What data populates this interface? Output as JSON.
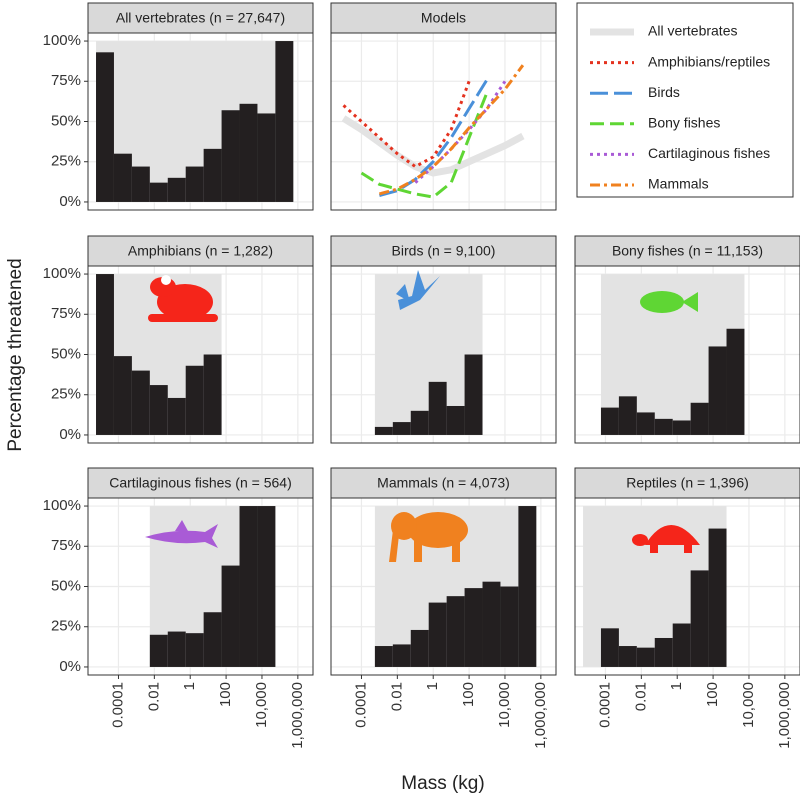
{
  "axis_titles": {
    "x": "Mass (kg)",
    "y": "Percentage threatened"
  },
  "chart_data": [
    {
      "type": "histogram",
      "title": "All vertebrates (n = 27,647)",
      "xscale": "log",
      "color": "#231f20",
      "bins": [
        5.6e-06,
        5.6e-05,
        0.00056,
        0.0056,
        0.056,
        0.56,
        5.6,
        56,
        560,
        5600,
        56000,
        560000
      ],
      "values": [
        93,
        30,
        22,
        12,
        15,
        22,
        33,
        57,
        61,
        55,
        100
      ],
      "xlim": [
        2e-06,
        7000000
      ],
      "ylim": [
        -5,
        105
      ],
      "xticks": [
        0.0001,
        0.01,
        1,
        100,
        {
          "value": 10000,
          "label": "10,000"
        },
        {
          "value": 1000000,
          "label": "1,000,000"
        }
      ],
      "yticks": [
        {
          "value": 0,
          "label": "0%"
        },
        {
          "value": 25,
          "label": "25%"
        },
        {
          "value": 50,
          "label": "50%"
        },
        {
          "value": 75,
          "label": "75%"
        },
        {
          "value": 100,
          "label": "100%"
        }
      ]
    },
    {
      "type": "line",
      "title": "Models",
      "xscale": "log",
      "legend": "outside-right",
      "x": [
        1e-05,
        0.0001,
        0.001,
        0.01,
        0.1,
        1,
        10,
        100,
        1000,
        10000,
        100000,
        1000000
      ],
      "series": [
        {
          "name": "All vertebrates",
          "color": "#e3e3e3",
          "linestyle": "solid",
          "values": [
            52,
            45,
            37,
            29,
            22,
            18,
            20,
            25,
            30,
            35,
            41,
            null
          ]
        },
        {
          "name": "Amphibians/reptiles",
          "color": "#e4321f",
          "linestyle": "dotted",
          "values": [
            60,
            50,
            40,
            30,
            22,
            28,
            45,
            75,
            null,
            null,
            null,
            null
          ]
        },
        {
          "name": "Birds",
          "color": "#4a90d9",
          "linestyle": "longdash",
          "values": [
            null,
            null,
            4,
            7,
            14,
            25,
            40,
            58,
            76,
            null,
            null,
            null
          ]
        },
        {
          "name": "Bony fishes",
          "color": "#5fd634",
          "linestyle": "dashed",
          "values": [
            null,
            18,
            11,
            8,
            5,
            3,
            12,
            40,
            68,
            null,
            null,
            null
          ]
        },
        {
          "name": "Cartilaginous fishes",
          "color": "#a95bd6",
          "linestyle": "dotted",
          "values": [
            null,
            null,
            null,
            null,
            12,
            22,
            33,
            45,
            58,
            75,
            null,
            null
          ]
        },
        {
          "name": "Mammals",
          "color": "#f0811f",
          "linestyle": "dotdash",
          "values": [
            null,
            null,
            5,
            8,
            14,
            22,
            33,
            46,
            58,
            70,
            85,
            null
          ]
        }
      ],
      "xlim": [
        2e-06,
        7000000
      ],
      "ylim": [
        -5,
        105
      ],
      "xticks": [
        0.0001,
        0.01,
        1,
        100,
        {
          "value": 10000,
          "label": "10,000"
        },
        {
          "value": 1000000,
          "label": "1,000,000"
        }
      ],
      "yticks": [
        {
          "value": 0,
          "label": "0%"
        },
        {
          "value": 25,
          "label": "25%"
        },
        {
          "value": 50,
          "label": "50%"
        },
        {
          "value": 75,
          "label": "75%"
        },
        {
          "value": 100,
          "label": "100%"
        }
      ]
    },
    {
      "type": "histogram",
      "title": "Amphibians (n = 1,282)",
      "xscale": "log",
      "color": "#231f20",
      "bins": [
        5.6e-06,
        5.6e-05,
        0.00056,
        0.0056,
        0.056,
        0.56,
        5.6,
        56
      ],
      "values": [
        100,
        49,
        40,
        31,
        23,
        43,
        50
      ],
      "xlim": [
        2e-06,
        7000000
      ],
      "ylim": [
        -5,
        105
      ],
      "xticks": [
        0.0001,
        0.01,
        1,
        100,
        {
          "value": 10000,
          "label": "10,000"
        },
        {
          "value": 1000000,
          "label": "1,000,000"
        }
      ],
      "yticks": [
        {
          "value": 0,
          "label": "0%"
        },
        {
          "value": 25,
          "label": "25%"
        },
        {
          "value": 50,
          "label": "50%"
        },
        {
          "value": 75,
          "label": "75%"
        },
        {
          "value": 100,
          "label": "100%"
        }
      ]
    },
    {
      "type": "histogram",
      "title": "Birds (n = 9,100)",
      "xscale": "log",
      "color": "#231f20",
      "bins": [
        0.00056,
        0.0056,
        0.056,
        0.56,
        5.6,
        56,
        560
      ],
      "values": [
        5,
        8,
        15,
        33,
        18,
        50
      ],
      "xlim": [
        2e-06,
        7000000
      ],
      "ylim": [
        -5,
        105
      ],
      "xticks": [
        0.0001,
        0.01,
        1,
        100,
        {
          "value": 10000,
          "label": "10,000"
        },
        {
          "value": 1000000,
          "label": "1,000,000"
        }
      ],
      "yticks": [
        {
          "value": 0,
          "label": "0%"
        },
        {
          "value": 25,
          "label": "25%"
        },
        {
          "value": 50,
          "label": "50%"
        },
        {
          "value": 75,
          "label": "75%"
        },
        {
          "value": 100,
          "label": "100%"
        }
      ]
    },
    {
      "type": "histogram",
      "title": "Bony fishes (n = 11,153)",
      "xscale": "log",
      "color": "#231f20",
      "bins": [
        5.6e-05,
        0.00056,
        0.0056,
        0.056,
        0.56,
        5.6,
        56,
        560,
        5600
      ],
      "values": [
        17,
        24,
        14,
        10,
        9,
        20,
        55,
        66
      ],
      "xlim": [
        2e-06,
        7000000
      ],
      "ylim": [
        -5,
        105
      ],
      "xticks": [
        0.0001,
        0.01,
        1,
        100,
        {
          "value": 10000,
          "label": "10,000"
        },
        {
          "value": 1000000,
          "label": "1,000,000"
        }
      ],
      "yticks": [
        {
          "value": 0,
          "label": "0%"
        },
        {
          "value": 25,
          "label": "25%"
        },
        {
          "value": 50,
          "label": "50%"
        },
        {
          "value": 75,
          "label": "75%"
        },
        {
          "value": 100,
          "label": "100%"
        }
      ]
    },
    {
      "type": "histogram",
      "title": "Cartilaginous fishes (n = 564)",
      "xscale": "log",
      "color": "#231f20",
      "bins": [
        0.0056,
        0.056,
        0.56,
        5.6,
        56,
        560,
        5600,
        56000
      ],
      "values": [
        20,
        22,
        21,
        34,
        63,
        100,
        100
      ],
      "xlim": [
        2e-06,
        7000000
      ],
      "ylim": [
        -5,
        105
      ],
      "xticks": [
        0.0001,
        0.01,
        1,
        100,
        {
          "value": 10000,
          "label": "10,000"
        },
        {
          "value": 1000000,
          "label": "1,000,000"
        }
      ],
      "yticks": [
        {
          "value": 0,
          "label": "0%"
        },
        {
          "value": 25,
          "label": "25%"
        },
        {
          "value": 50,
          "label": "50%"
        },
        {
          "value": 75,
          "label": "75%"
        },
        {
          "value": 100,
          "label": "100%"
        }
      ]
    },
    {
      "type": "histogram",
      "title": "Mammals (n = 4,073)",
      "xscale": "log",
      "color": "#231f20",
      "bins": [
        0.00056,
        0.0056,
        0.056,
        0.56,
        5.6,
        56,
        560,
        5600,
        56000,
        560000
      ],
      "values": [
        13,
        14,
        23,
        40,
        44,
        49,
        53,
        50,
        100
      ],
      "xlim": [
        2e-06,
        7000000
      ],
      "ylim": [
        -5,
        105
      ],
      "xticks": [
        0.0001,
        0.01,
        1,
        100,
        {
          "value": 10000,
          "label": "10,000"
        },
        {
          "value": 1000000,
          "label": "1,000,000"
        }
      ],
      "yticks": [
        {
          "value": 0,
          "label": "0%"
        },
        {
          "value": 25,
          "label": "25%"
        },
        {
          "value": 50,
          "label": "50%"
        },
        {
          "value": 75,
          "label": "75%"
        },
        {
          "value": 100,
          "label": "100%"
        }
      ]
    },
    {
      "type": "histogram",
      "title": "Reptiles (n = 1,396)",
      "xscale": "log",
      "color": "#231f20",
      "bins": [
        5.6e-06,
        5.6e-05,
        0.00056,
        0.0056,
        0.056,
        0.56,
        5.6,
        56,
        560
      ],
      "values": [
        0,
        24,
        13,
        12,
        18,
        27,
        60,
        86
      ],
      "xlim": [
        2e-06,
        7000000
      ],
      "ylim": [
        -5,
        105
      ],
      "xticks": [
        0.0001,
        0.01,
        1,
        100,
        {
          "value": 10000,
          "label": "10,000"
        },
        {
          "value": 1000000,
          "label": "1,000,000"
        }
      ],
      "yticks": [
        {
          "value": 0,
          "label": "0%"
        },
        {
          "value": 25,
          "label": "25%"
        },
        {
          "value": 50,
          "label": "50%"
        },
        {
          "value": 75,
          "label": "75%"
        },
        {
          "value": 100,
          "label": "100%"
        }
      ]
    }
  ]
}
